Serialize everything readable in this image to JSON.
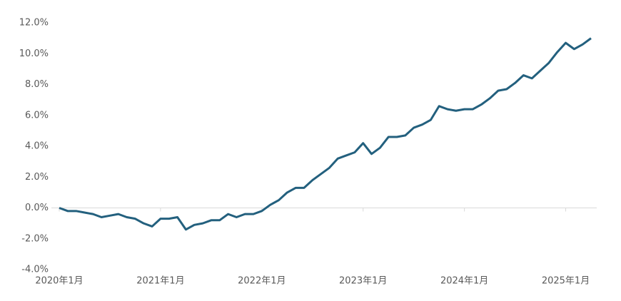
{
  "chart_data": {
    "type": "line",
    "categories": [
      "2020年1月",
      null,
      null,
      null,
      null,
      null,
      null,
      null,
      null,
      null,
      null,
      null,
      "2021年1月",
      null,
      null,
      null,
      null,
      null,
      null,
      null,
      null,
      null,
      null,
      null,
      "2022年1月",
      null,
      null,
      null,
      null,
      null,
      null,
      null,
      null,
      null,
      null,
      null,
      "2023年1月",
      null,
      null,
      null,
      null,
      null,
      null,
      null,
      null,
      null,
      null,
      null,
      "2024年1月",
      null,
      null,
      null,
      null,
      null,
      null,
      null,
      null,
      null,
      null,
      null,
      "2025年1月",
      null,
      null,
      null
    ],
    "series": [
      {
        "color": "#23607e",
        "values": [
          0.0,
          -0.2,
          -0.2,
          -0.3,
          -0.4,
          -0.6,
          -0.5,
          -0.4,
          -0.6,
          -0.7,
          -1.0,
          -1.2,
          -0.7,
          -0.7,
          -0.6,
          -1.4,
          -1.1,
          -1.0,
          -0.8,
          -0.8,
          -0.4,
          -0.6,
          -0.4,
          -0.4,
          -0.2,
          0.2,
          0.5,
          1.0,
          1.3,
          1.3,
          1.8,
          2.2,
          2.6,
          3.2,
          3.4,
          3.6,
          4.2,
          3.5,
          3.9,
          4.6,
          4.6,
          4.7,
          5.2,
          5.4,
          5.7,
          6.6,
          6.4,
          6.3,
          6.4,
          6.4,
          6.7,
          7.1,
          7.6,
          7.7,
          8.1,
          8.6,
          8.4,
          8.9,
          9.4,
          10.1,
          10.7,
          10.3,
          10.6,
          11.0
        ]
      }
    ],
    "ylim": [
      -4,
      12
    ],
    "yticks": [
      {
        "value": -4,
        "label": "-4.0%"
      },
      {
        "value": -2,
        "label": "-2.0%"
      },
      {
        "value": 0,
        "label": "0.0%"
      },
      {
        "value": 2,
        "label": "2.0%"
      },
      {
        "value": 4,
        "label": "4.0%"
      },
      {
        "value": 6,
        "label": "6.0%"
      },
      {
        "value": 8,
        "label": "8.0%"
      },
      {
        "value": 10,
        "label": "10.0%"
      },
      {
        "value": 12,
        "label": "12.0%"
      }
    ]
  }
}
